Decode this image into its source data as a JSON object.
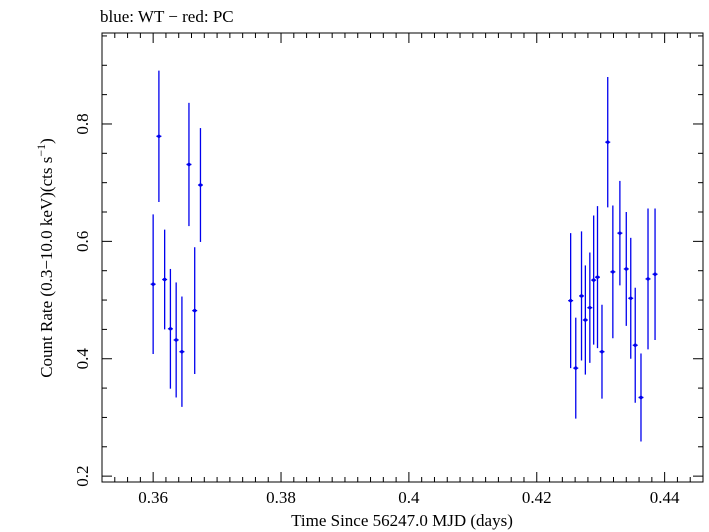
{
  "chart_data": {
    "type": "scatter",
    "title": "blue: WT − red: PC",
    "xlabel": "Time Since 56247.0 MJD (days)",
    "ylabel_main": "Count Rate (0.3−10.0 keV)(cts s",
    "ylabel_sup": "−1",
    "ylabel_close": ")",
    "xlim": [
      0.352,
      0.446
    ],
    "ylim": [
      0.19,
      0.955
    ],
    "x_ticks": [
      0.36,
      0.38,
      0.4,
      0.42,
      0.44
    ],
    "x_tick_labels": [
      "0.36",
      "0.38",
      "0.4",
      "0.42",
      "0.44"
    ],
    "x_minor_step": 0.002,
    "y_ticks": [
      0.2,
      0.4,
      0.6,
      0.8
    ],
    "y_tick_labels": [
      "0.2",
      "0.4",
      "0.6",
      "0.8"
    ],
    "y_minor_step": 0.05,
    "grid": false,
    "series": [
      {
        "color": "#0000ee",
        "points": [
          {
            "x": 0.36,
            "y": 0.527,
            "err": 0.119
          },
          {
            "x": 0.3609,
            "y": 0.779,
            "err": 0.112
          },
          {
            "x": 0.3618,
            "y": 0.535,
            "err": 0.085
          },
          {
            "x": 0.3627,
            "y": 0.451,
            "err": 0.102
          },
          {
            "x": 0.3636,
            "y": 0.432,
            "err": 0.098
          },
          {
            "x": 0.3645,
            "y": 0.412,
            "err": 0.094
          },
          {
            "x": 0.3656,
            "y": 0.731,
            "err": 0.105
          },
          {
            "x": 0.3665,
            "y": 0.482,
            "err": 0.108
          },
          {
            "x": 0.3674,
            "y": 0.696,
            "err": 0.097
          },
          {
            "x": 0.4253,
            "y": 0.499,
            "err": 0.115
          },
          {
            "x": 0.4261,
            "y": 0.384,
            "err": 0.086
          },
          {
            "x": 0.427,
            "y": 0.507,
            "err": 0.11
          },
          {
            "x": 0.4276,
            "y": 0.466,
            "err": 0.093
          },
          {
            "x": 0.4283,
            "y": 0.487,
            "err": 0.094
          },
          {
            "x": 0.4289,
            "y": 0.534,
            "err": 0.11
          },
          {
            "x": 0.4295,
            "y": 0.539,
            "err": 0.121
          },
          {
            "x": 0.4302,
            "y": 0.412,
            "err": 0.08
          },
          {
            "x": 0.4311,
            "y": 0.769,
            "err": 0.111
          },
          {
            "x": 0.4319,
            "y": 0.548,
            "err": 0.113
          },
          {
            "x": 0.433,
            "y": 0.614,
            "err": 0.089
          },
          {
            "x": 0.434,
            "y": 0.553,
            "err": 0.097
          },
          {
            "x": 0.4347,
            "y": 0.503,
            "err": 0.103
          },
          {
            "x": 0.4354,
            "y": 0.423,
            "err": 0.098
          },
          {
            "x": 0.4363,
            "y": 0.334,
            "err": 0.075
          },
          {
            "x": 0.4374,
            "y": 0.536,
            "err": 0.12
          },
          {
            "x": 0.4385,
            "y": 0.544,
            "err": 0.112
          }
        ]
      }
    ]
  }
}
